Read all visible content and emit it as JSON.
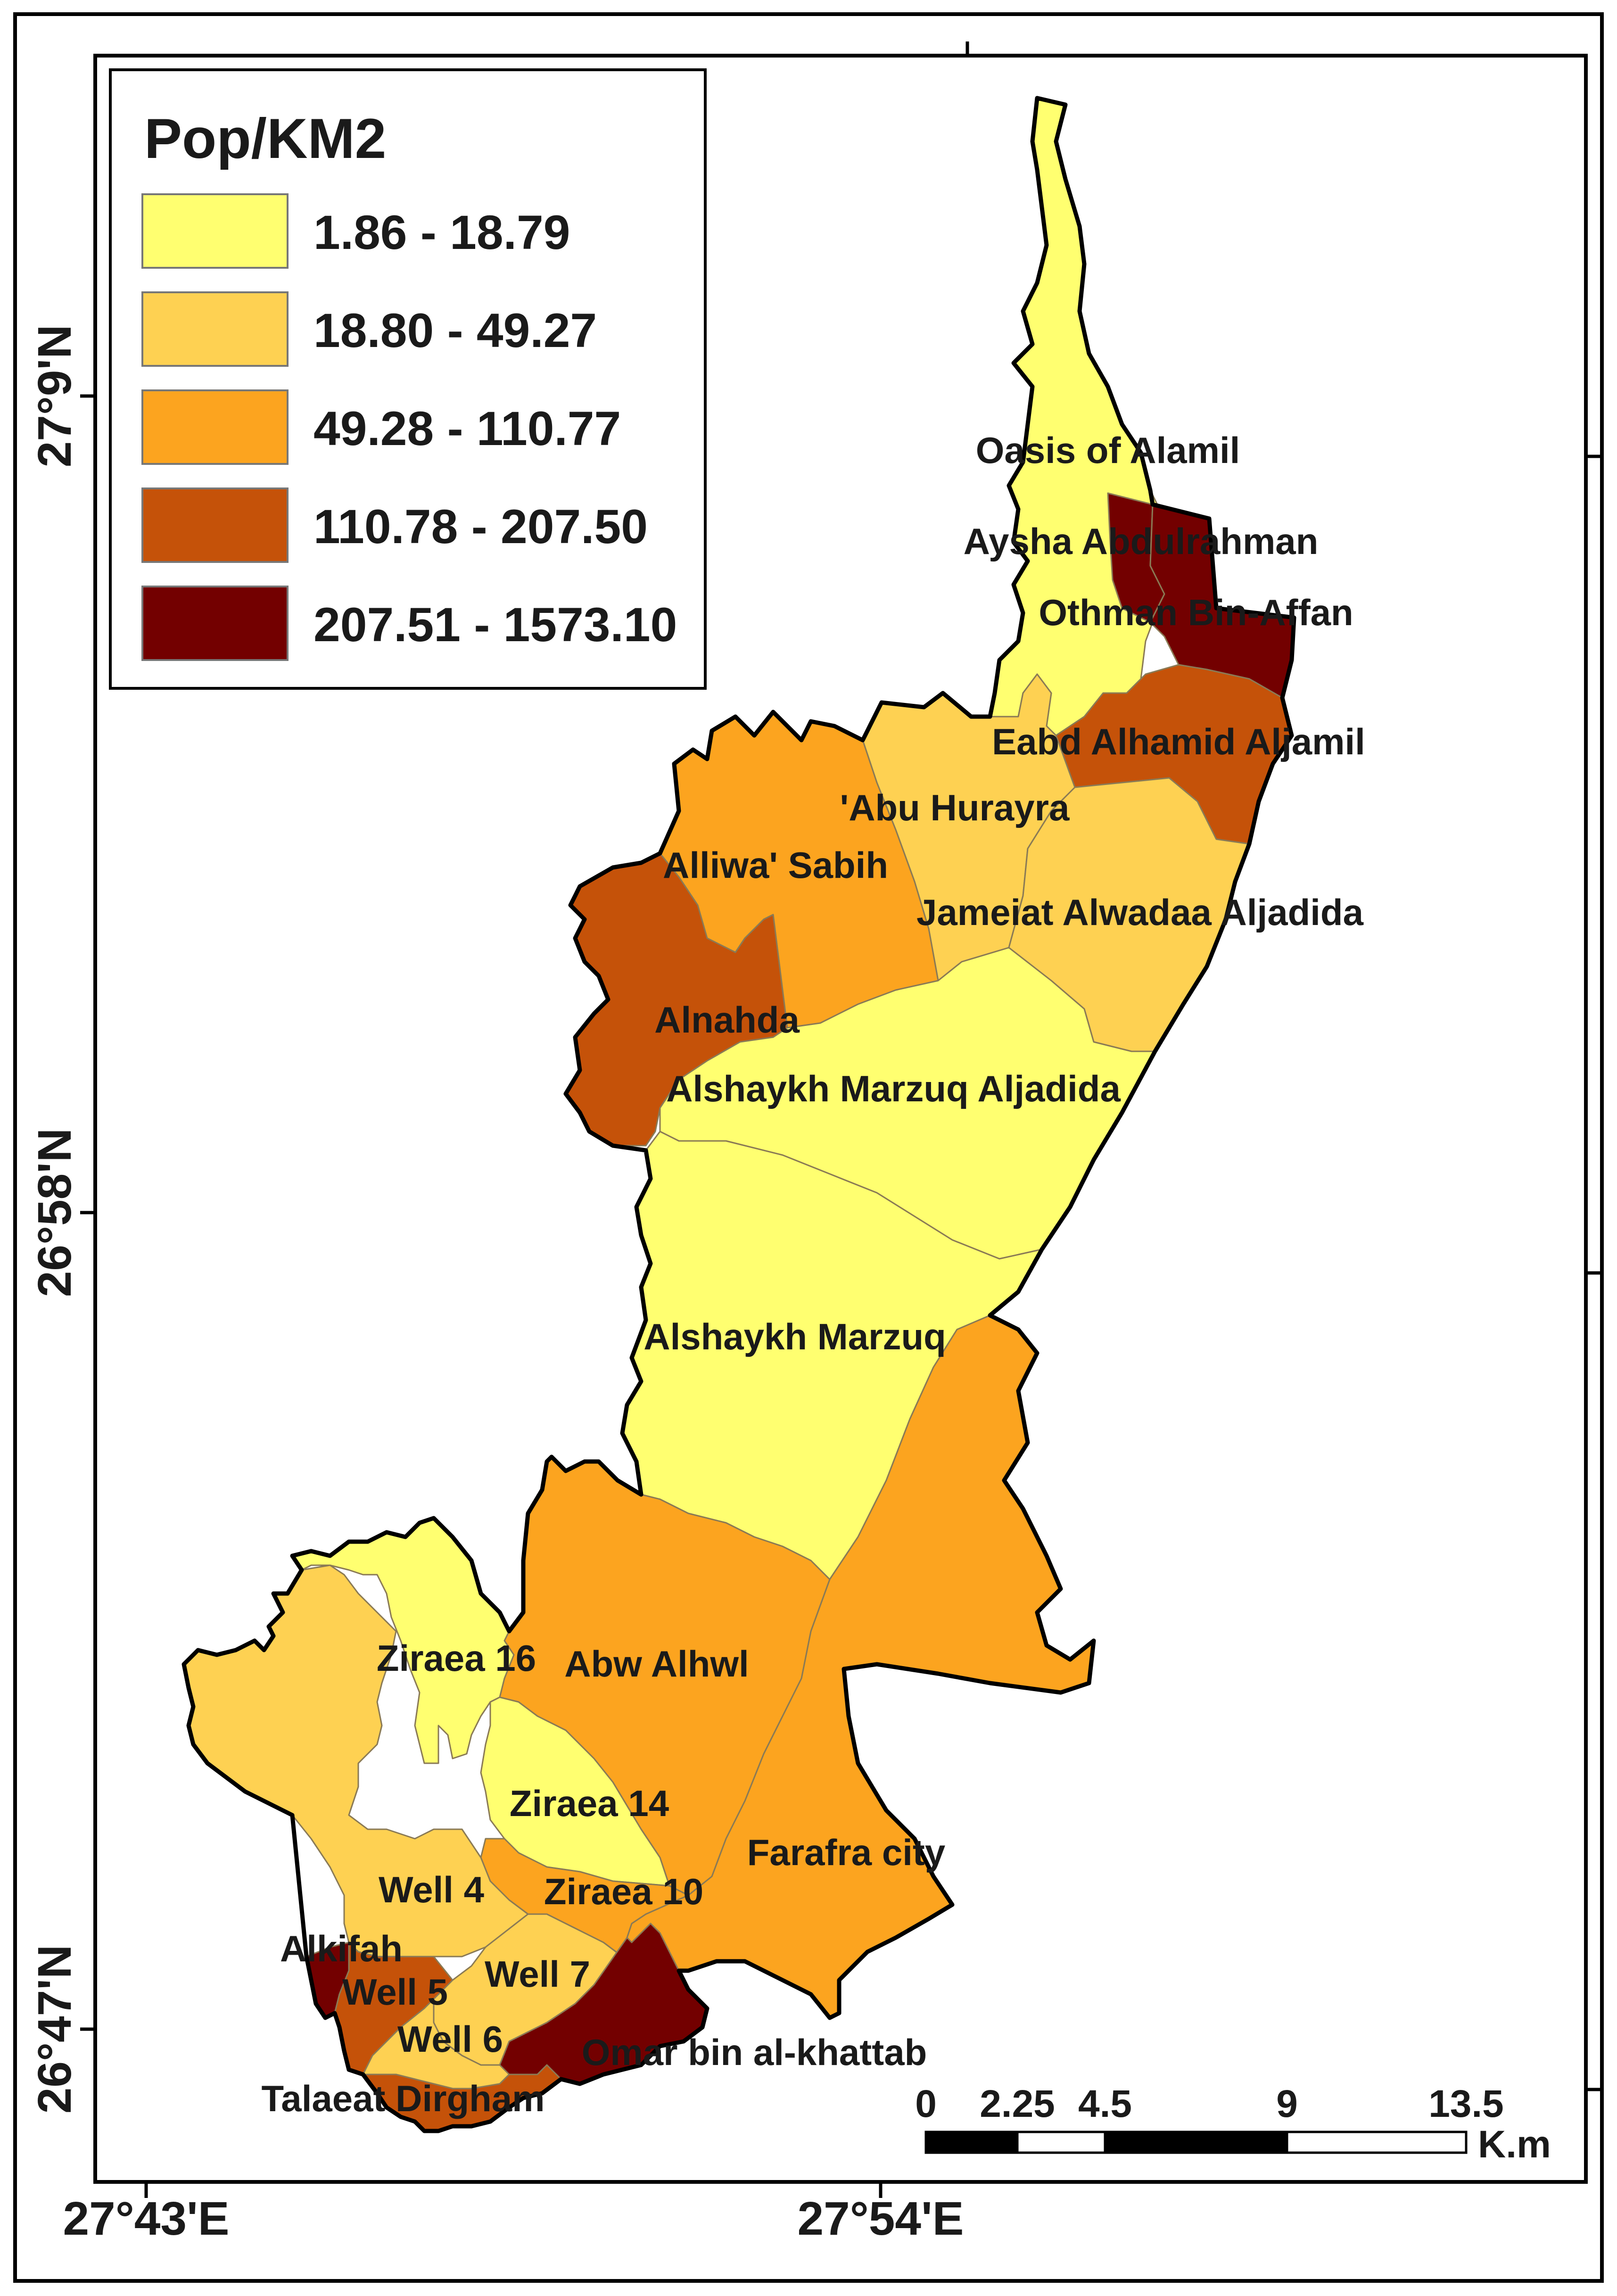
{
  "legend": {
    "title": "Pop/KM2",
    "classes": [
      {
        "range": "1.86 - 18.79",
        "color": "#ffff70"
      },
      {
        "range": "18.80 - 49.27",
        "color": "#fed152"
      },
      {
        "range": "49.28 - 110.77",
        "color": "#fca41f"
      },
      {
        "range": "110.78 - 207.50",
        "color": "#c55209"
      },
      {
        "range": "207.51 - 1573.10",
        "color": "#730000"
      }
    ]
  },
  "coordinates": {
    "lat_labels": [
      "27°9'N",
      "26°58'N",
      "26°47'N"
    ],
    "lon_labels": [
      "27°43'E",
      "27°54'E"
    ]
  },
  "scale_bar": {
    "ticks": [
      "0",
      "2.25",
      "4.5",
      "9",
      "13.5"
    ],
    "unit": "K.m"
  },
  "districts": [
    {
      "name": "Oasis of Alamil",
      "class": 0
    },
    {
      "name": "Aysha Abdulrahman",
      "class": 4
    },
    {
      "name": "Othman Bin-Affan",
      "class": 4
    },
    {
      "name": "Eabd Alhamid Aljamil",
      "class": 3
    },
    {
      "name": "'Abu Hurayra",
      "class": 1
    },
    {
      "name": "Alliwa' Sabih",
      "class": 2
    },
    {
      "name": "Jameiat Alwadaa Aljadida",
      "class": 1
    },
    {
      "name": "Alnahda",
      "class": 3
    },
    {
      "name": "Alshaykh Marzuq Aljadida",
      "class": 0
    },
    {
      "name": "Alshaykh Marzuq",
      "class": 0
    },
    {
      "name": "Ziraea 16",
      "class": 0
    },
    {
      "name": "Abw Alhwl",
      "class": 2
    },
    {
      "name": "Ziraea 14",
      "class": 0
    },
    {
      "name": "Farafra city",
      "class": 2
    },
    {
      "name": "Well 4",
      "class": 1
    },
    {
      "name": "Ziraea 10",
      "class": 2
    },
    {
      "name": "Alkifah",
      "class": 4
    },
    {
      "name": "Well 5",
      "class": 3
    },
    {
      "name": "Well 7",
      "class": 1
    },
    {
      "name": "Well 6",
      "class": 1
    },
    {
      "name": "Omar bin al-khattab",
      "class": 4
    },
    {
      "name": "Talaeat Dirgham",
      "class": 3
    }
  ]
}
